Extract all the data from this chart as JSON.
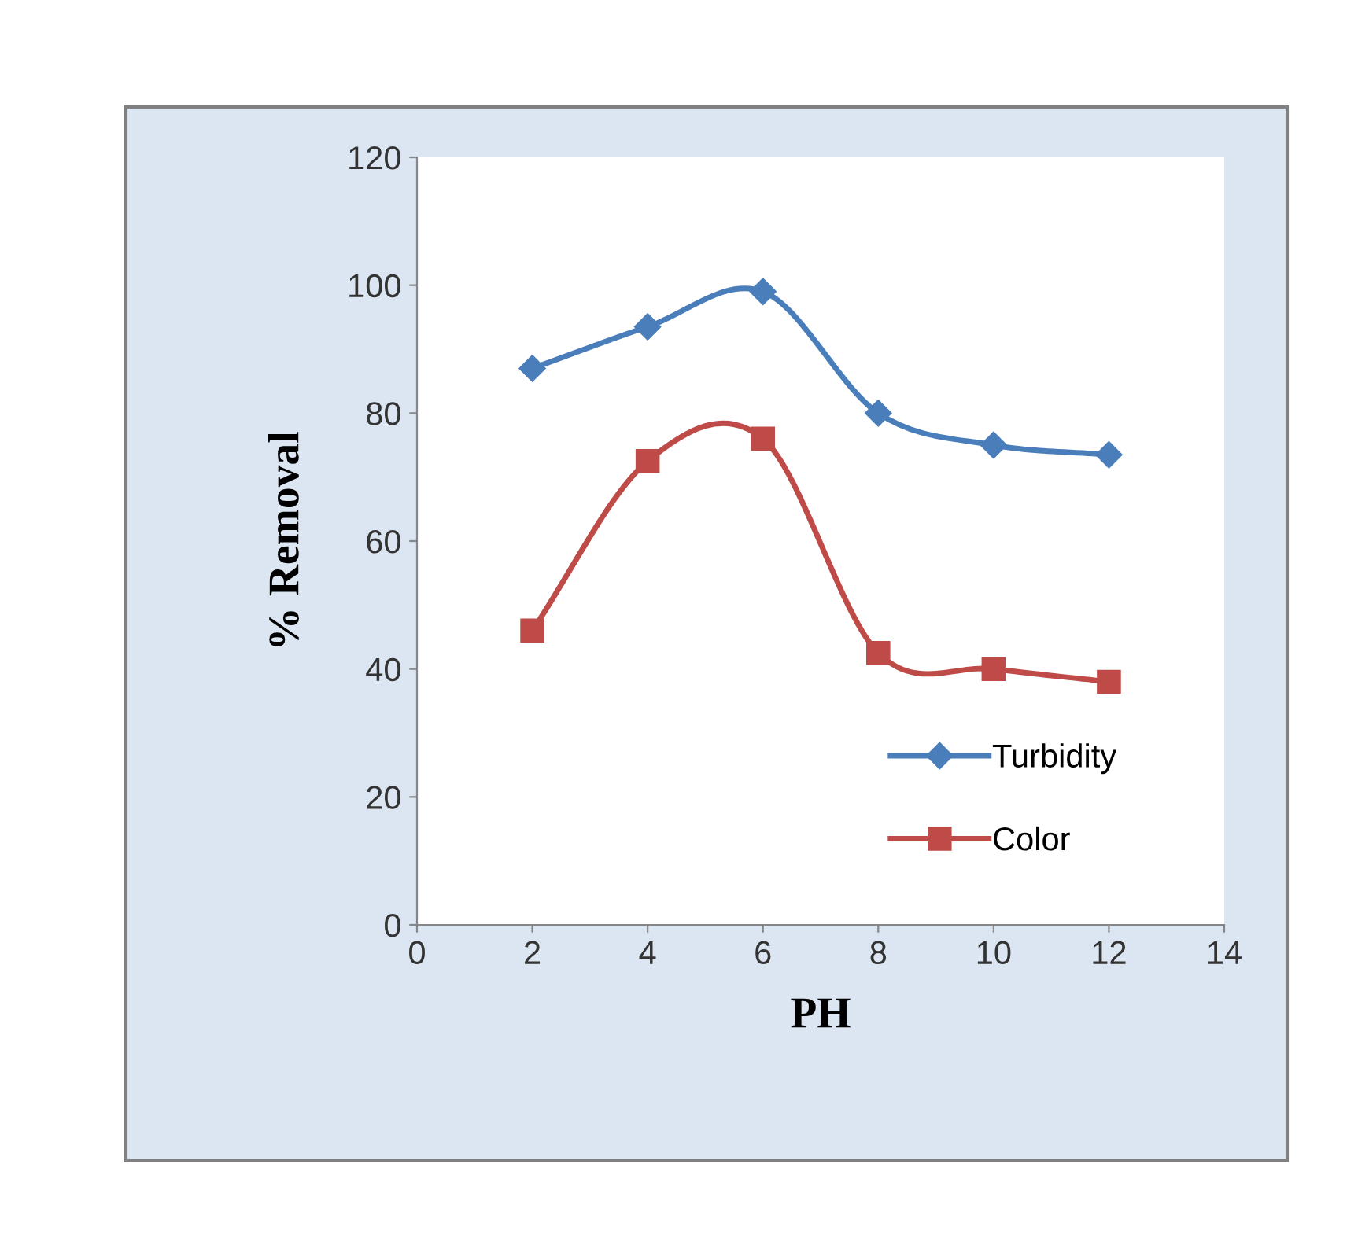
{
  "chart_data": {
    "type": "line",
    "xlabel": "PH",
    "ylabel": "% Removal",
    "x": [
      2,
      4,
      6,
      8,
      10,
      12
    ],
    "series": [
      {
        "name": "Turbidity",
        "color": "#4a7ebb",
        "marker": "diamond",
        "values": [
          87,
          93.5,
          99,
          80,
          75,
          73.5
        ]
      },
      {
        "name": "Color",
        "color": "#be4b48",
        "marker": "square",
        "values": [
          46,
          72.5,
          76,
          42.5,
          40,
          38
        ]
      }
    ],
    "xlim": [
      0,
      14
    ],
    "xticks": [
      0,
      2,
      4,
      6,
      8,
      10,
      12,
      14
    ],
    "ylim": [
      0,
      120
    ],
    "yticks": [
      0,
      20,
      40,
      60,
      80,
      100,
      120
    ],
    "grid": false,
    "legend": "bottom right",
    "line_style": "solid"
  }
}
